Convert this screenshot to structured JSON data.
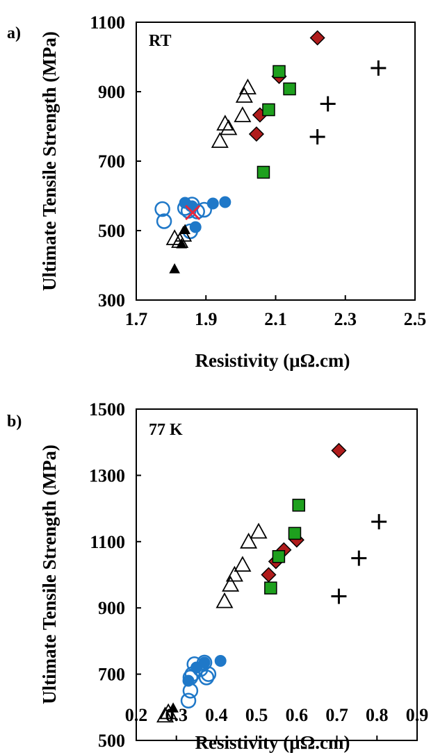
{
  "chart_data": [
    {
      "type": "scatter",
      "panel_label": "a)",
      "annotation": "RT",
      "xlabel": "Resistivity (μΩ.cm)",
      "ylabel": "Ultimate Tensile Strength (MPa)",
      "xlim": [
        1.7,
        2.5
      ],
      "ylim": [
        300,
        1100
      ],
      "x_ticks": [
        1.7,
        1.9,
        2.1,
        2.3,
        2.5
      ],
      "x_tick_labels": [
        "1.7",
        "1.9",
        "2.1",
        "2.3",
        "2.5"
      ],
      "y_ticks": [
        300,
        500,
        700,
        900,
        1100
      ],
      "y_tick_labels": [
        "300",
        "500",
        "700",
        "900",
        "1100"
      ],
      "grid": false,
      "series": [
        {
          "marker": "open-circle",
          "color": "#1f78c8",
          "points": [
            [
              1.775,
              562
            ],
            [
              1.78,
              527
            ],
            [
              1.84,
              565
            ],
            [
              1.85,
              557
            ],
            [
              1.86,
              575
            ],
            [
              1.875,
              555
            ],
            [
              1.895,
              560
            ],
            [
              1.855,
              498
            ]
          ]
        },
        {
          "marker": "filled-circle",
          "color": "#1f78c8",
          "points": [
            [
              1.84,
              580
            ],
            [
              1.86,
              570
            ],
            [
              1.87,
              510
            ],
            [
              1.92,
              578
            ],
            [
              1.955,
              582
            ]
          ]
        },
        {
          "marker": "filled-triangle",
          "color": "#000000",
          "points": [
            [
              1.81,
              390
            ],
            [
              1.83,
              462
            ],
            [
              1.84,
              503
            ]
          ]
        },
        {
          "marker": "open-triangle",
          "color": "#000000",
          "points": [
            [
              1.81,
              478
            ],
            [
              1.825,
              470
            ],
            [
              1.835,
              488
            ],
            [
              1.94,
              758
            ],
            [
              1.955,
              808
            ],
            [
              1.965,
              795
            ],
            [
              2.005,
              832
            ],
            [
              2.01,
              888
            ],
            [
              2.02,
              912
            ]
          ]
        },
        {
          "marker": "x-cross",
          "color": "#e8263c",
          "points": [
            [
              1.862,
              552
            ]
          ]
        },
        {
          "marker": "filled-diamond",
          "color": "#b01c1c",
          "points": [
            [
              2.045,
              778
            ],
            [
              2.055,
              833
            ],
            [
              2.11,
              944
            ],
            [
              2.22,
              1055
            ]
          ]
        },
        {
          "marker": "filled-square",
          "color": "#1ea01e",
          "points": [
            [
              2.065,
              668
            ],
            [
              2.08,
              848
            ],
            [
              2.11,
              958
            ],
            [
              2.14,
              908
            ]
          ]
        },
        {
          "marker": "plus",
          "color": "#000000",
          "points": [
            [
              2.22,
              770
            ],
            [
              2.25,
              865
            ],
            [
              2.395,
              968
            ]
          ]
        }
      ]
    },
    {
      "type": "scatter",
      "panel_label": "b)",
      "annotation": "77 K",
      "xlabel": "Resistivity (μΩ.cm)",
      "ylabel": "Ultimate Tensile Strength (MPa)",
      "xlim": [
        0.2,
        0.9
      ],
      "ylim": [
        500,
        1500
      ],
      "x_ticks": [
        0.2,
        0.3,
        0.4,
        0.5,
        0.6,
        0.7,
        0.8,
        0.9
      ],
      "x_tick_labels": [
        "0.2",
        "0.3",
        "0.4",
        "0.5",
        "0.6",
        "0.7",
        "0.8",
        "0.9"
      ],
      "y_ticks": [
        500,
        700,
        900,
        1100,
        1300,
        1500
      ],
      "y_tick_labels": [
        "500",
        "700",
        "900",
        "1100",
        "1300",
        "1500"
      ],
      "grid": false,
      "series": [
        {
          "marker": "open-circle",
          "color": "#1f78c8",
          "points": [
            [
              0.33,
              620
            ],
            [
              0.335,
              650
            ],
            [
              0.335,
              690
            ],
            [
              0.34,
              700
            ],
            [
              0.345,
              730
            ],
            [
              0.36,
              715
            ],
            [
              0.37,
              735
            ],
            [
              0.375,
              690
            ],
            [
              0.38,
              700
            ]
          ]
        },
        {
          "marker": "filled-circle",
          "color": "#1f78c8",
          "points": [
            [
              0.33,
              680
            ],
            [
              0.35,
              720
            ],
            [
              0.37,
              735
            ],
            [
              0.41,
              740
            ]
          ]
        },
        {
          "marker": "filled-triangle",
          "color": "#000000",
          "points": [
            [
              0.292,
              598
            ]
          ]
        },
        {
          "marker": "open-triangle",
          "color": "#000000",
          "points": [
            [
              0.272,
              575
            ],
            [
              0.28,
              585
            ],
            [
              0.42,
              920
            ],
            [
              0.435,
              970
            ],
            [
              0.445,
              1000
            ],
            [
              0.465,
              1030
            ],
            [
              0.48,
              1100
            ],
            [
              0.505,
              1130
            ]
          ]
        },
        {
          "marker": "filled-diamond",
          "color": "#b01c1c",
          "points": [
            [
              0.53,
              1000
            ],
            [
              0.548,
              1040
            ],
            [
              0.568,
              1075
            ],
            [
              0.6,
              1105
            ],
            [
              0.705,
              1375
            ]
          ]
        },
        {
          "marker": "filled-square",
          "color": "#1ea01e",
          "points": [
            [
              0.535,
              960
            ],
            [
              0.555,
              1055
            ],
            [
              0.595,
              1125
            ],
            [
              0.605,
              1210
            ]
          ]
        },
        {
          "marker": "plus",
          "color": "#000000",
          "points": [
            [
              0.705,
              935
            ],
            [
              0.755,
              1050
            ],
            [
              0.805,
              1160
            ]
          ]
        }
      ]
    }
  ]
}
